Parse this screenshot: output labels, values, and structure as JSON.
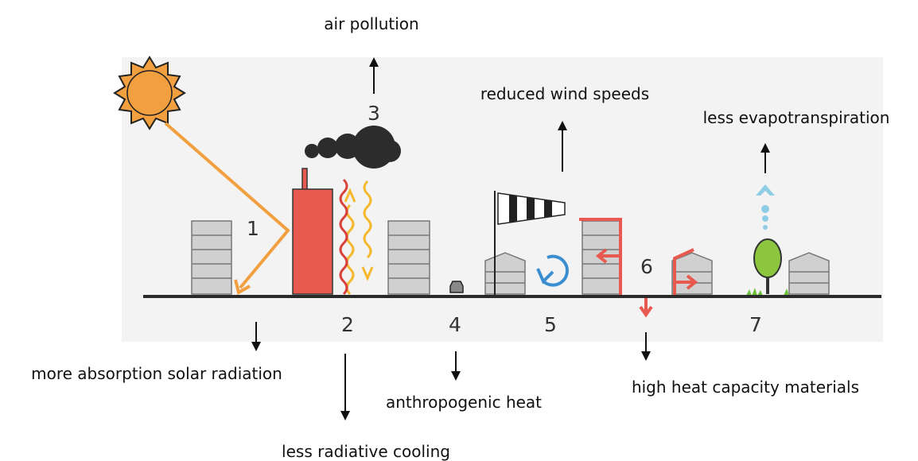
{
  "effects": [
    {
      "number": "1",
      "label": "more absorption solar radiation"
    },
    {
      "number": "2",
      "label": "less radiative cooling"
    },
    {
      "number": "3",
      "label": "air pollution"
    },
    {
      "number": "4",
      "label": "anthropogenic heat"
    },
    {
      "number": "5",
      "label": "reduced wind speeds"
    },
    {
      "number": "6",
      "label": "high heat capacity materials"
    },
    {
      "number": "7",
      "label": "less evapotranspiration"
    }
  ]
}
